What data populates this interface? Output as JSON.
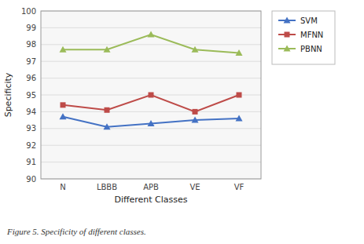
{
  "chart_data": {
    "type": "line",
    "caption": "Figure 5. Specificity of different classes.",
    "xlabel": "Different Classes",
    "ylabel": "Specificity",
    "categories": [
      "N",
      "LBBB",
      "APB",
      "VE",
      "VF"
    ],
    "series": [
      {
        "name": "SVM",
        "color": "#4472c4",
        "marker": "triangle",
        "values": [
          93.7,
          93.1,
          93.3,
          93.5,
          93.6
        ]
      },
      {
        "name": "MFNN",
        "color": "#be4b48",
        "marker": "square",
        "values": [
          94.4,
          94.1,
          95.0,
          94.0,
          95.0
        ]
      },
      {
        "name": "PBNN",
        "color": "#9bbb59",
        "marker": "triangle",
        "values": [
          97.7,
          97.7,
          98.6,
          97.7,
          97.5
        ]
      }
    ],
    "ylim": [
      90,
      100
    ],
    "yticks": [
      90,
      91,
      92,
      93,
      94,
      95,
      96,
      97,
      98,
      99,
      100
    ],
    "grid": true,
    "legend": "right"
  }
}
